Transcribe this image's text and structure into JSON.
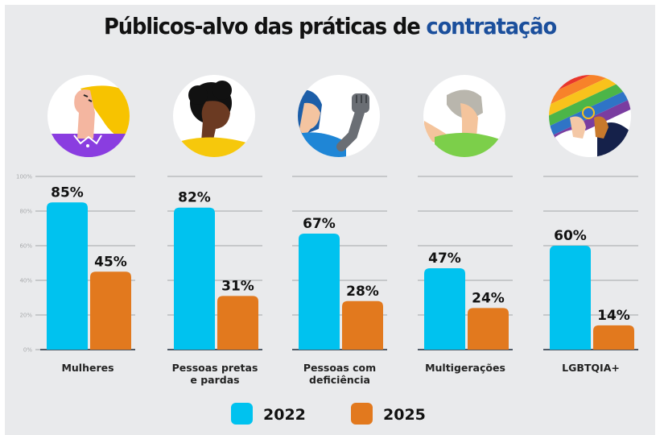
{
  "chart_data": {
    "type": "bar",
    "title": "Públicos-alvo das práticas de contratação",
    "title_parts": [
      {
        "text": "Públicos-alvo das práticas de ",
        "accent": false
      },
      {
        "text": "contratação",
        "accent": true
      }
    ],
    "categories": [
      {
        "lines": [
          "Mulheres"
        ],
        "icon": "woman-avatar-icon"
      },
      {
        "lines": [
          "Pessoas pretas",
          "e pardas"
        ],
        "icon": "black-person-avatar-icon"
      },
      {
        "lines": [
          "Pessoas com",
          "deficiência"
        ],
        "icon": "prosthetic-arm-avatar-icon"
      },
      {
        "lines": [
          "Multigerações"
        ],
        "icon": "older-man-avatar-icon"
      },
      {
        "lines": [
          "LGBTQIA+"
        ],
        "icon": "rainbow-flag-couple-icon"
      }
    ],
    "series": [
      {
        "name": "2022",
        "color": "#00c2ef",
        "values": [
          85,
          82,
          67,
          47,
          60
        ]
      },
      {
        "name": "2025",
        "color": "#e2791e",
        "values": [
          45,
          31,
          28,
          24,
          14
        ]
      }
    ],
    "value_suffix": "%",
    "ylim": [
      0,
      100
    ],
    "yticks": [
      0,
      20,
      40,
      60,
      80,
      100
    ],
    "ytick_labels": [
      "0%",
      "20%",
      "40%",
      "60%",
      "80%",
      "100%"
    ],
    "xlabel": "",
    "ylabel": "",
    "grid": true,
    "legend_position": "bottom-center",
    "colors": {
      "title_accent": "#1b4f9c",
      "background": "#e9eaec",
      "grid": "#a4a6a8",
      "baseline": "#505a66"
    }
  }
}
